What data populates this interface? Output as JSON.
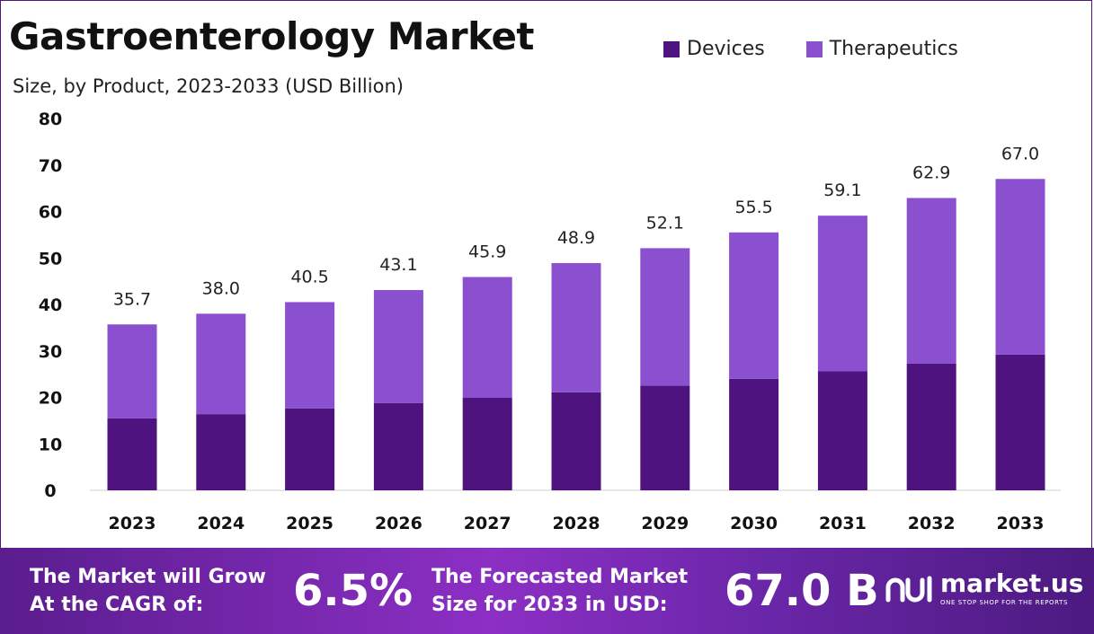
{
  "header": {
    "title": "Gastroenterology Market",
    "subtitle": "Size, by Product, 2023-2033 (USD Billion)"
  },
  "legend": [
    {
      "label": "Devices",
      "color": "#4f137f"
    },
    {
      "label": "Therapeutics",
      "color": "#8a50d0"
    }
  ],
  "chart_data": {
    "type": "bar",
    "stacked": true,
    "categories": [
      "2023",
      "2024",
      "2025",
      "2026",
      "2027",
      "2028",
      "2029",
      "2030",
      "2031",
      "2032",
      "2033"
    ],
    "series": [
      {
        "name": "Devices",
        "color": "#4f137f",
        "values": [
          15.5,
          16.4,
          17.6,
          18.8,
          19.9,
          21.1,
          22.5,
          24.0,
          25.6,
          27.3,
          29.2
        ]
      },
      {
        "name": "Therapeutics",
        "color": "#8a50d0",
        "values": [
          20.2,
          21.6,
          22.9,
          24.3,
          26.0,
          27.8,
          29.6,
          31.5,
          33.5,
          35.6,
          37.8
        ]
      }
    ],
    "totals": [
      "35.7",
      "38.0",
      "40.5",
      "43.1",
      "45.9",
      "48.9",
      "52.1",
      "55.5",
      "59.1",
      "62.9",
      "67.0"
    ],
    "ylim": [
      0,
      80
    ],
    "yticks": [
      0,
      10,
      20,
      30,
      40,
      50,
      60,
      70,
      80
    ],
    "grid": false,
    "legend_position": "top-right"
  },
  "banner": {
    "cagr_label_line1": "The Market will Grow",
    "cagr_label_line2": "At the CAGR of:",
    "cagr_value": "6.5%",
    "forecast_label_line1": "The Forecasted Market",
    "forecast_label_line2": "Size for 2033 in USD:",
    "forecast_value": "67.0 B",
    "brand_name": "market.us",
    "brand_tagline": "ONE STOP SHOP FOR THE REPORTS"
  }
}
